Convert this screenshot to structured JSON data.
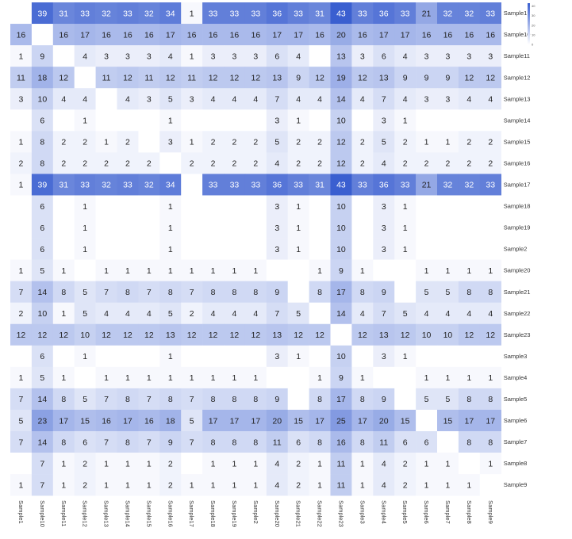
{
  "chart_data": {
    "type": "heatmap",
    "title": "",
    "xlabel": "",
    "ylabel": "",
    "x_labels": [
      "Sample1",
      "Sample10",
      "Sample11",
      "Sample12",
      "Sample13",
      "Sample14",
      "Sample15",
      "Sample16",
      "Sample17",
      "Sample18",
      "Sample19",
      "Sample2",
      "Sample20",
      "Sample21",
      "Sample22",
      "Sample23",
      "Sample3",
      "Sample4",
      "Sample5",
      "Sample6",
      "Sample7",
      "Sample8",
      "Sample9"
    ],
    "y_labels": [
      "Sample1",
      "Sample10",
      "Sample11",
      "Sample12",
      "Sample13",
      "Sample14",
      "Sample15",
      "Sample16",
      "Sample17",
      "Sample18",
      "Sample19",
      "Sample2",
      "Sample20",
      "Sample21",
      "Sample22",
      "Sample23",
      "Sample3",
      "Sample4",
      "Sample5",
      "Sample6",
      "Sample7",
      "Sample8",
      "Sample9"
    ],
    "values": [
      [
        null,
        39,
        31,
        33,
        32,
        33,
        32,
        34,
        1,
        33,
        33,
        33,
        36,
        33,
        31,
        43,
        33,
        36,
        33,
        21,
        32,
        32,
        33
      ],
      [
        16,
        null,
        16,
        17,
        16,
        16,
        16,
        17,
        16,
        16,
        16,
        16,
        17,
        17,
        16,
        20,
        16,
        17,
        17,
        16,
        16,
        16,
        16
      ],
      [
        1,
        9,
        null,
        4,
        3,
        3,
        3,
        4,
        1,
        3,
        3,
        3,
        6,
        4,
        null,
        13,
        3,
        6,
        4,
        3,
        3,
        3,
        3
      ],
      [
        11,
        18,
        12,
        null,
        11,
        12,
        11,
        12,
        11,
        12,
        12,
        12,
        13,
        9,
        12,
        19,
        12,
        13,
        9,
        9,
        9,
        12,
        12
      ],
      [
        3,
        10,
        4,
        4,
        null,
        4,
        3,
        5,
        3,
        4,
        4,
        4,
        7,
        4,
        4,
        14,
        4,
        7,
        4,
        3,
        3,
        4,
        4
      ],
      [
        null,
        6,
        null,
        1,
        null,
        null,
        null,
        1,
        null,
        null,
        null,
        null,
        3,
        1,
        null,
        10,
        null,
        3,
        1,
        null,
        null,
        null,
        null
      ],
      [
        1,
        8,
        2,
        2,
        1,
        2,
        null,
        3,
        1,
        2,
        2,
        2,
        5,
        2,
        2,
        12,
        2,
        5,
        2,
        1,
        1,
        2,
        2
      ],
      [
        2,
        8,
        2,
        2,
        2,
        2,
        2,
        null,
        2,
        2,
        2,
        2,
        4,
        2,
        2,
        12,
        2,
        4,
        2,
        2,
        2,
        2,
        2
      ],
      [
        1,
        39,
        31,
        33,
        32,
        33,
        32,
        34,
        null,
        33,
        33,
        33,
        36,
        33,
        31,
        43,
        33,
        36,
        33,
        21,
        32,
        32,
        33
      ],
      [
        null,
        6,
        null,
        1,
        null,
        null,
        null,
        1,
        null,
        null,
        null,
        null,
        3,
        1,
        null,
        10,
        null,
        3,
        1,
        null,
        null,
        null,
        null
      ],
      [
        null,
        6,
        null,
        1,
        null,
        null,
        null,
        1,
        null,
        null,
        null,
        null,
        3,
        1,
        null,
        10,
        null,
        3,
        1,
        null,
        null,
        null,
        null
      ],
      [
        null,
        6,
        null,
        1,
        null,
        null,
        null,
        1,
        null,
        null,
        null,
        null,
        3,
        1,
        null,
        10,
        null,
        3,
        1,
        null,
        null,
        null,
        null
      ],
      [
        1,
        5,
        1,
        null,
        1,
        1,
        1,
        1,
        1,
        1,
        1,
        1,
        null,
        null,
        1,
        9,
        1,
        null,
        null,
        1,
        1,
        1,
        1
      ],
      [
        7,
        14,
        8,
        5,
        7,
        8,
        7,
        8,
        7,
        8,
        8,
        8,
        9,
        null,
        8,
        17,
        8,
        9,
        null,
        5,
        5,
        8,
        8
      ],
      [
        2,
        10,
        1,
        5,
        4,
        4,
        4,
        5,
        2,
        4,
        4,
        4,
        7,
        5,
        null,
        14,
        4,
        7,
        5,
        4,
        4,
        4,
        4
      ],
      [
        12,
        12,
        12,
        10,
        12,
        12,
        12,
        13,
        12,
        12,
        12,
        12,
        13,
        12,
        12,
        null,
        12,
        13,
        12,
        10,
        10,
        12,
        12
      ],
      [
        null,
        6,
        null,
        1,
        null,
        null,
        null,
        1,
        null,
        null,
        null,
        null,
        3,
        1,
        null,
        10,
        null,
        3,
        1,
        null,
        null,
        null,
        null
      ],
      [
        1,
        5,
        1,
        null,
        1,
        1,
        1,
        1,
        1,
        1,
        1,
        1,
        null,
        null,
        1,
        9,
        1,
        null,
        null,
        1,
        1,
        1,
        1
      ],
      [
        7,
        14,
        8,
        5,
        7,
        8,
        7,
        8,
        7,
        8,
        8,
        8,
        9,
        null,
        8,
        17,
        8,
        9,
        null,
        5,
        5,
        8,
        8
      ],
      [
        5,
        23,
        17,
        15,
        16,
        17,
        16,
        18,
        5,
        17,
        17,
        17,
        20,
        15,
        17,
        25,
        17,
        20,
        15,
        null,
        15,
        17,
        17
      ],
      [
        7,
        14,
        8,
        6,
        7,
        8,
        7,
        9,
        7,
        8,
        8,
        8,
        11,
        6,
        8,
        16,
        8,
        11,
        6,
        6,
        null,
        8,
        8
      ],
      [
        null,
        7,
        1,
        2,
        1,
        1,
        1,
        2,
        null,
        1,
        1,
        1,
        4,
        2,
        1,
        11,
        1,
        4,
        2,
        1,
        1,
        null,
        1
      ],
      [
        1,
        7,
        1,
        2,
        1,
        1,
        1,
        2,
        1,
        1,
        1,
        1,
        4,
        2,
        1,
        11,
        1,
        4,
        2,
        1,
        1,
        1,
        null
      ]
    ],
    "colorbar": {
      "min": 0,
      "max": 43,
      "ticks": [
        "0",
        "10",
        "20",
        "30",
        "40"
      ],
      "low_color": "#ffffff",
      "high_color": "#3a5fd0"
    },
    "colors": {
      "text_light": "#ffffff",
      "text_dark": "#222222",
      "label": "#333333"
    }
  }
}
